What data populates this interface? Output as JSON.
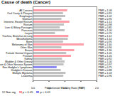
{
  "chart_data": {
    "type": "bar",
    "orientation": "horizontal",
    "title": "Cause of death (Cancer)",
    "x_label": "Proportionate Mortality Ratio (PMR)",
    "categories": [
      "All Cancers",
      "Oral Cavity & Pharynx",
      "Esophagus",
      "Stomach",
      "Intestine, Except Rectum",
      "Rectum",
      "Liver & Biliary Passages",
      "Pancreas",
      "Larynx",
      "Trachea, Bronchus & Lung",
      "Mesothelioma",
      "Bone",
      "Melanoma of Skin",
      "Other Skin",
      "Breast",
      "Female Genital Organs",
      "Prostate",
      "Kidney",
      "Bladder & Other Urinary",
      "Brain & Other Nervous System",
      "Non-Hodgkin's Lymphoma",
      "Hodgkin's Disease",
      "Multiple Myeloma",
      "Leukemia"
    ],
    "series": [
      {
        "name": "Non-sig",
        "color": "#c0c0c0",
        "values": [
          null,
          0.95,
          1.02,
          0.9,
          null,
          0.98,
          0.85,
          1.0,
          0.7,
          null,
          1.1,
          0.95,
          null,
          0.9,
          null,
          1.05,
          null,
          0.92,
          1.0,
          0.97,
          null,
          0.88,
          1.03,
          0.96
        ],
        "value_labels": [
          null,
          "PMR = 0.95",
          "PMR = 1.02",
          "PMR = 0.90",
          null,
          "PMR = 0.98",
          "PMR = 0.85",
          "PMR = 1.00",
          "PMR = 0.70",
          null,
          "PMR = 1.10",
          "PMR = 0.95",
          null,
          "PMR = 0.90",
          null,
          "PMR = 1.05",
          null,
          "PMR = 0.92",
          "PMR = 1.00",
          "PMR = 0.97",
          null,
          "PMR = 0.88",
          "PMR = 1.03",
          "PMR = 0.96"
        ]
      },
      {
        "name": "p < 0.05",
        "color": "#ff9ea6",
        "values": [
          1.08,
          null,
          null,
          null,
          1.15,
          null,
          null,
          null,
          null,
          1.12,
          null,
          null,
          1.6,
          null,
          1.3,
          null,
          1.2,
          null,
          null,
          null,
          null,
          null,
          null,
          null
        ],
        "value_labels": [
          "PMR = 1.08",
          null,
          null,
          null,
          "PMR = 1.15",
          null,
          null,
          null,
          null,
          "PMR = 1.12",
          null,
          null,
          "PMR = 1.60",
          null,
          "PMR = 1.30",
          null,
          "PMR = 1.20",
          null,
          null,
          null,
          null,
          null,
          null,
          null
        ]
      },
      {
        "name": "p < 0.01",
        "color": "#8c8cf0",
        "values": [
          null,
          null,
          null,
          null,
          null,
          null,
          null,
          null,
          null,
          null,
          null,
          null,
          null,
          null,
          null,
          null,
          null,
          null,
          null,
          null,
          0.75,
          null,
          null,
          null
        ],
        "value_labels": [
          null,
          null,
          null,
          null,
          null,
          null,
          null,
          null,
          null,
          null,
          null,
          null,
          null,
          null,
          null,
          null,
          null,
          null,
          null,
          null,
          "PMR = 0.75",
          null,
          null,
          null
        ]
      }
    ],
    "xlim": [
      0,
      2
    ],
    "xticks": [
      {
        "value": 0,
        "label": "0.0"
      },
      {
        "value": 0.5,
        "label": "0.5"
      },
      {
        "value": 1,
        "label": "1.0"
      },
      {
        "value": 1.5,
        "label": "1.5"
      },
      {
        "value": 2,
        "label": "2.0"
      }
    ],
    "data_labels": true,
    "legend": "bottom-left",
    "grid": false
  }
}
